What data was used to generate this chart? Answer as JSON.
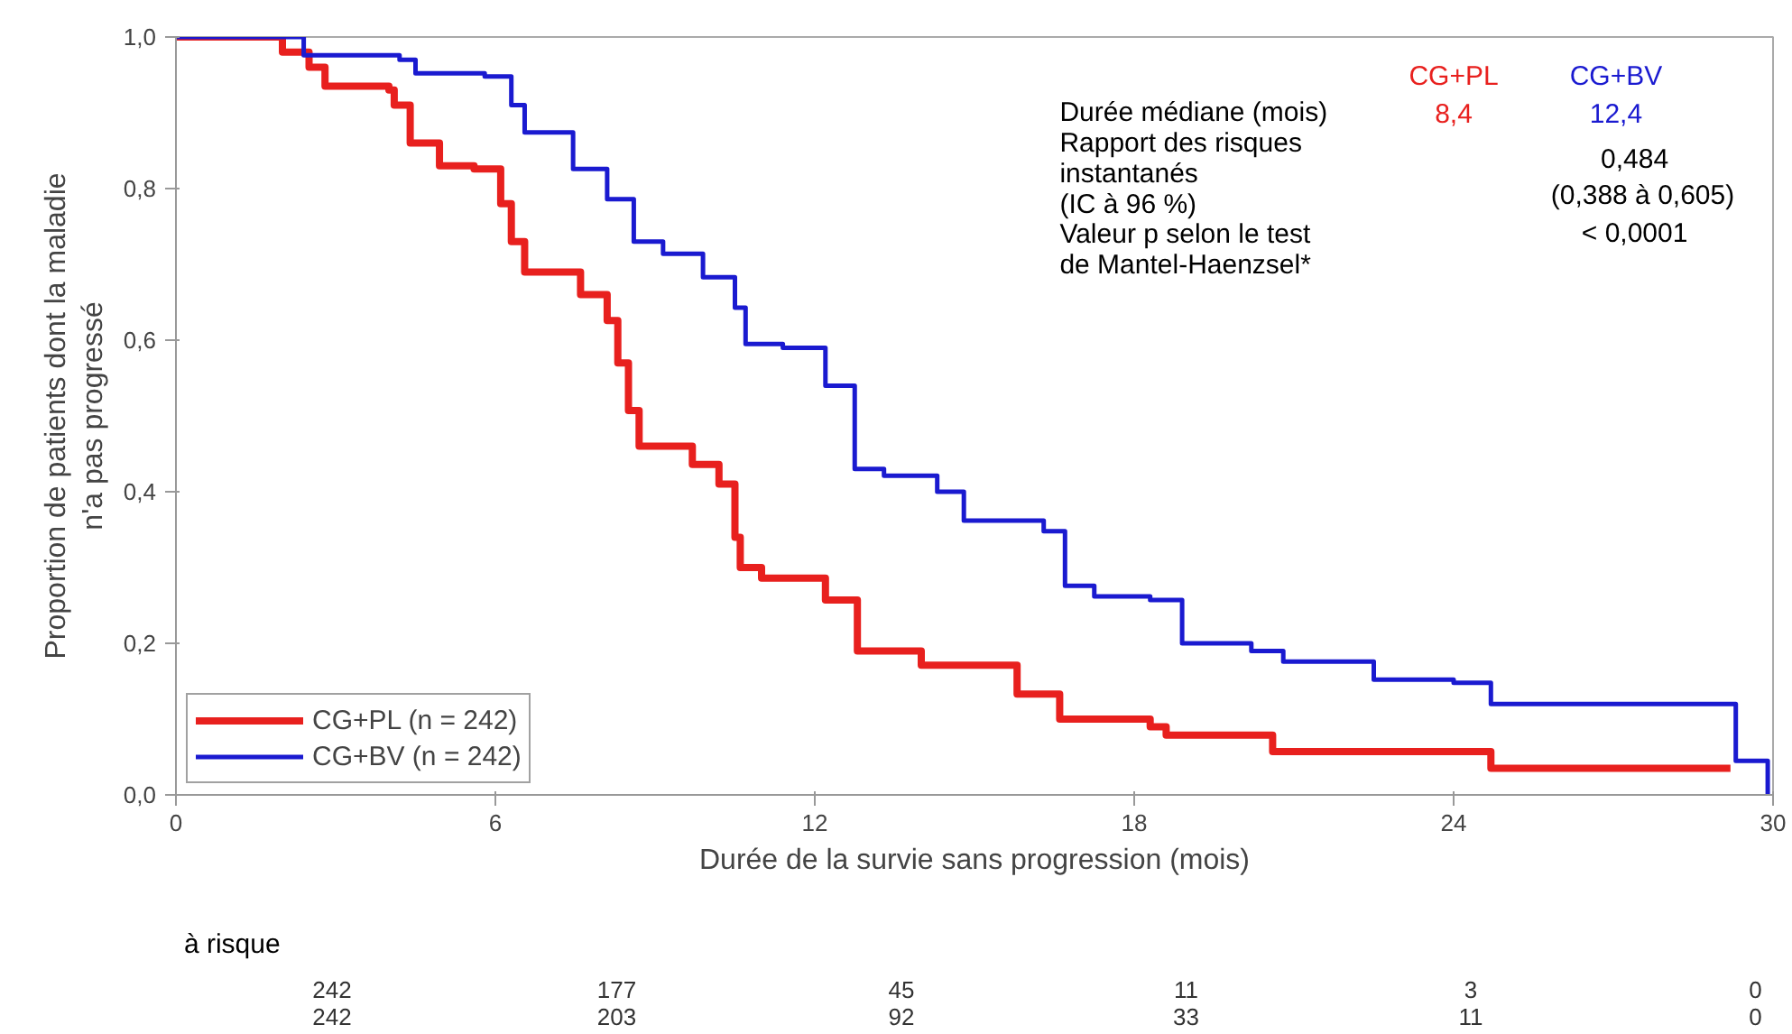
{
  "chart_data": {
    "type": "step",
    "xlabel": "Durée de la survie sans progression (mois)",
    "ylabel": "Proportion de patients dont la maladie\nn'a pas progressé",
    "xlim": [
      0,
      30
    ],
    "xticks": [
      0,
      6,
      12,
      18,
      24,
      30
    ],
    "ylim": [
      0,
      1.0
    ],
    "yticks": [
      {
        "value": 0,
        "label": "0,0"
      },
      {
        "value": 0.2,
        "label": "0,2"
      },
      {
        "value": 0.4,
        "label": "0,4"
      },
      {
        "value": 0.6,
        "label": "0,6"
      },
      {
        "value": 0.8,
        "label": "0,8"
      },
      {
        "value": 1.0,
        "label": "1,0"
      }
    ],
    "grid": false,
    "legend": "bottom left",
    "line_style": "solid",
    "series": [
      {
        "name": "CG+PL (n = 242)",
        "color": "#e8201e",
        "x": [
          0,
          1.5,
          2.0,
          2.5,
          2.8,
          4.0,
          4.1,
          4.4,
          4.95,
          5.6,
          6.1,
          6.3,
          6.55,
          7.6,
          8.1,
          8.3,
          8.5,
          8.7,
          9.7,
          10.2,
          10.5,
          10.6,
          11.0,
          12.2,
          12.8,
          14.0,
          15.8,
          16.6,
          18.3,
          18.6,
          20.6,
          24.7,
          29.2
        ],
        "values": [
          1.0,
          1.0,
          0.98,
          0.96,
          0.935,
          0.93,
          0.91,
          0.86,
          0.83,
          0.826,
          0.78,
          0.73,
          0.69,
          0.66,
          0.626,
          0.57,
          0.507,
          0.46,
          0.436,
          0.41,
          0.34,
          0.3,
          0.286,
          0.257,
          0.19,
          0.171,
          0.133,
          0.1,
          0.09,
          0.079,
          0.057,
          0.035,
          0.035
        ]
      },
      {
        "name": "CG+BV (n = 242)",
        "color": "#1a1ad0",
        "x": [
          0,
          1.8,
          2.4,
          4.2,
          4.5,
          5.8,
          6.3,
          6.55,
          7.46,
          8.1,
          8.6,
          9.15,
          9.9,
          10.5,
          10.7,
          11.4,
          12.2,
          12.75,
          13.3,
          14.3,
          14.8,
          16.3,
          16.7,
          17.25,
          18.3,
          18.9,
          20.2,
          20.8,
          22.5,
          24.0,
          24.7,
          29.3,
          29.9
        ],
        "values": [
          1.0,
          1.0,
          0.976,
          0.97,
          0.952,
          0.948,
          0.91,
          0.874,
          0.826,
          0.786,
          0.73,
          0.714,
          0.683,
          0.643,
          0.595,
          0.59,
          0.54,
          0.43,
          0.421,
          0.4,
          0.362,
          0.348,
          0.276,
          0.262,
          0.257,
          0.2,
          0.19,
          0.176,
          0.152,
          0.148,
          0.12,
          0.045,
          0.0
        ]
      }
    ],
    "annotations": [
      "CG+PL",
      "CG+BV",
      "Durée médiane (mois)",
      "8,4",
      "12,4",
      "Rapport des risques\ninstantanés\n(IC à 96 %)",
      "0,484",
      "(0,388 à 0,605)",
      "Valeur p selon le test\nde Mantel-Haenzsel*",
      "< 0,0001",
      "à risque",
      "242",
      "177",
      "45",
      "11",
      "3",
      "0",
      "242",
      "203",
      "92",
      "33",
      "11",
      "0"
    ]
  }
}
